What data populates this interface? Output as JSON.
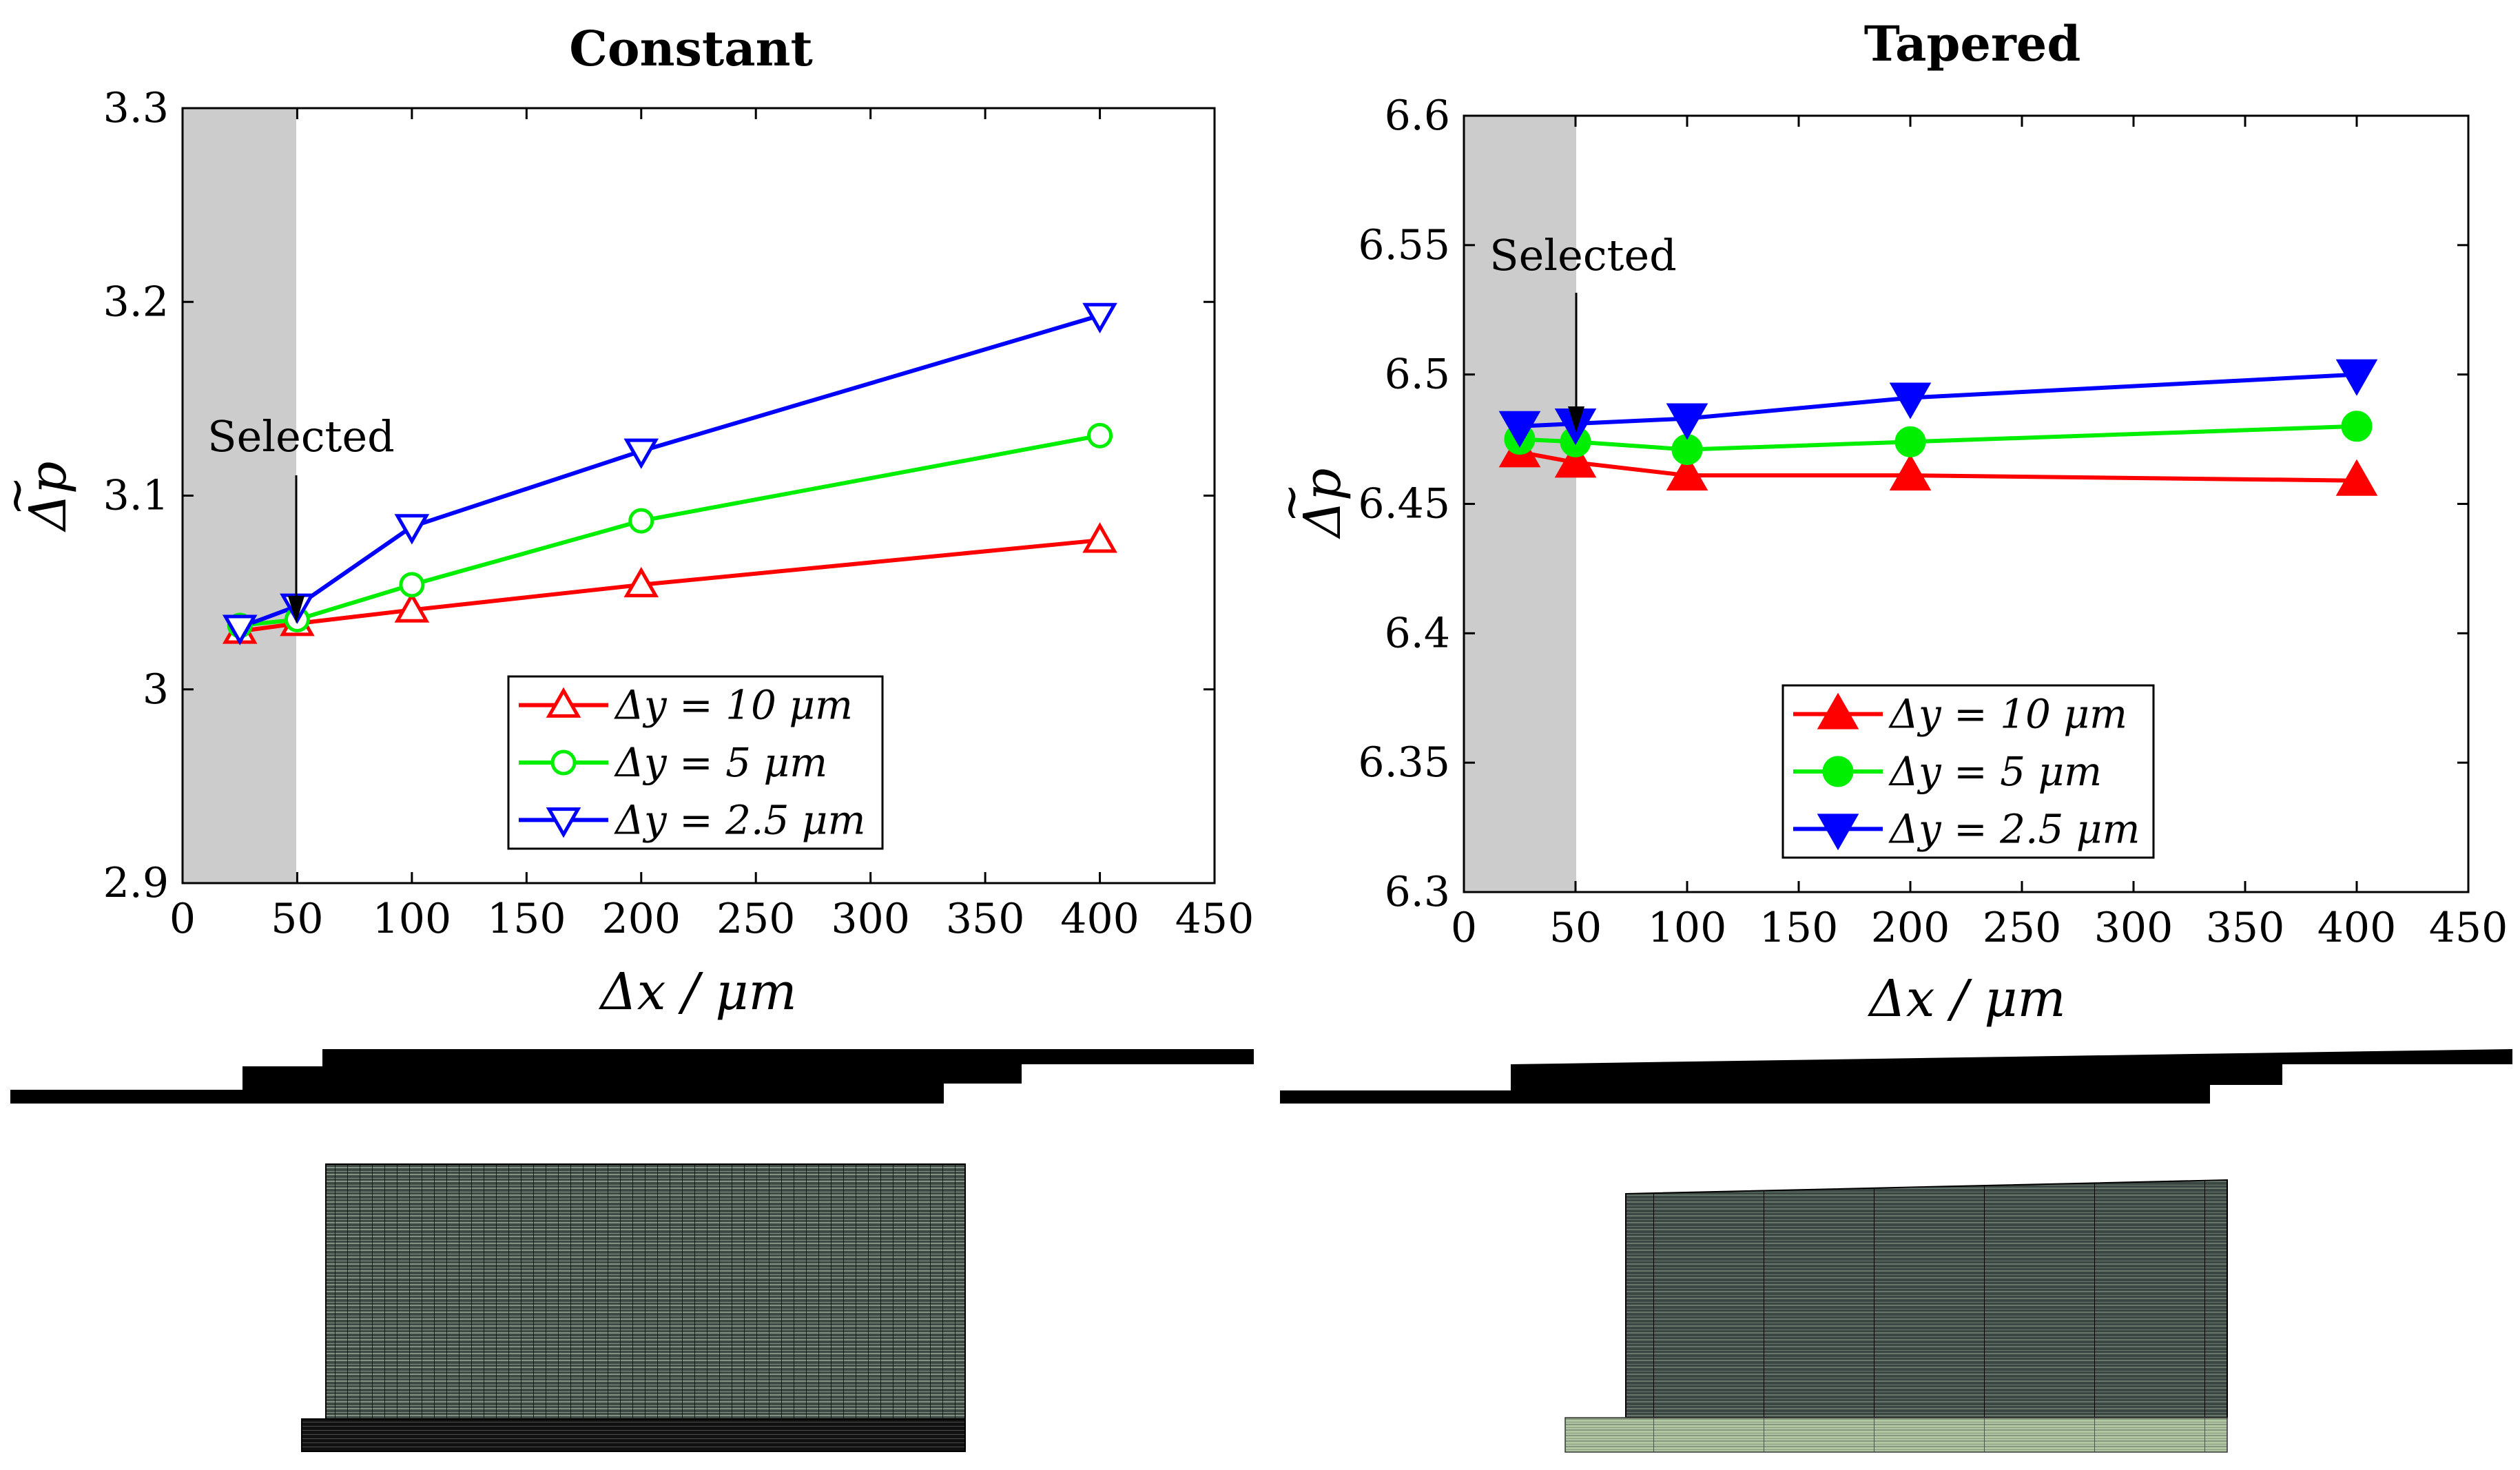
{
  "chart_data": [
    {
      "type": "line",
      "title": "Constant",
      "xlabel": "Δx / μm",
      "ylabel": "Δp",
      "xlim": [
        0,
        450
      ],
      "ylim": [
        2.9,
        3.3
      ],
      "xticks": [
        "0",
        "50",
        "100",
        "150",
        "200",
        "250",
        "300",
        "350",
        "400",
        "450"
      ],
      "yticks": [
        "2.9",
        "3",
        "3.1",
        "3.2",
        "3.3"
      ],
      "shaded_region": [
        0,
        50
      ],
      "annotation": {
        "text": "Selected",
        "x": 50,
        "y": 3.043
      },
      "marker_fill": "open",
      "legend_position": "lower-right",
      "series": [
        {
          "name": "Δy = 10 μm",
          "color": "#ff0000",
          "marker": "triangle-up",
          "x": [
            25,
            50,
            100,
            200,
            400
          ],
          "values": [
            3.03,
            3.034,
            3.041,
            3.054,
            3.077
          ]
        },
        {
          "name": "Δy = 5 μm",
          "color": "#00ee00",
          "marker": "circle",
          "x": [
            25,
            50,
            100,
            200,
            400
          ],
          "values": [
            3.033,
            3.036,
            3.054,
            3.087,
            3.131
          ]
        },
        {
          "name": "Δy = 2.5 μm",
          "color": "#0000ff",
          "marker": "triangle-down",
          "x": [
            25,
            50,
            100,
            200,
            400
          ],
          "values": [
            3.032,
            3.043,
            3.084,
            3.123,
            3.193
          ]
        }
      ]
    },
    {
      "type": "line",
      "title": "Tapered",
      "xlabel": "Δx / μm",
      "ylabel": "Δp",
      "xlim": [
        0,
        450
      ],
      "ylim": [
        6.3,
        6.6
      ],
      "xticks": [
        "0",
        "50",
        "100",
        "150",
        "200",
        "250",
        "300",
        "350",
        "400",
        "450"
      ],
      "yticks": [
        "6.3",
        "6.35",
        "6.4",
        "6.45",
        "6.5",
        "6.55",
        "6.6"
      ],
      "shaded_region": [
        0,
        50
      ],
      "annotation": {
        "text": "Selected",
        "x": 50,
        "y": 6.481
      },
      "marker_fill": "filled",
      "legend_position": "lower-right",
      "series": [
        {
          "name": "Δy = 10 μm",
          "color": "#ff0000",
          "marker": "triangle-up",
          "x": [
            25,
            50,
            100,
            200,
            400
          ],
          "values": [
            6.47,
            6.466,
            6.461,
            6.461,
            6.459
          ]
        },
        {
          "name": "Δy = 5 μm",
          "color": "#00ee00",
          "marker": "circle",
          "x": [
            25,
            50,
            100,
            200,
            400
          ],
          "values": [
            6.475,
            6.474,
            6.471,
            6.474,
            6.48
          ]
        },
        {
          "name": "Δy = 2.5 μm",
          "color": "#0000ff",
          "marker": "triangle-down",
          "x": [
            25,
            50,
            100,
            200,
            400
          ],
          "values": [
            6.48,
            6.481,
            6.483,
            6.491,
            6.5
          ]
        }
      ]
    }
  ],
  "geometry_labels": {
    "constant": "constant-gap-geometry",
    "tapered": "tapered-gap-geometry"
  },
  "colors": {
    "shade": "#cccccc",
    "mesh_fill": "#3b4742",
    "mesh_lower": "#a8c29a"
  }
}
